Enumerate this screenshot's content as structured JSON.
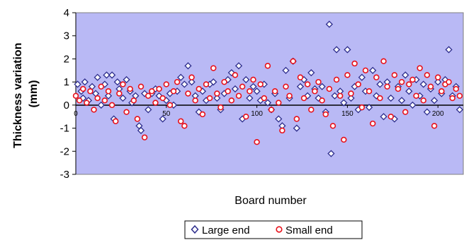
{
  "chart_data": {
    "type": "scatter",
    "xlabel": "Board number",
    "ylabel": "Thickness variation (mm)",
    "ylabel_lines": [
      "Thickness variation",
      "(mm)"
    ],
    "xlim": [
      0,
      214
    ],
    "ylim": [
      -3,
      4
    ],
    "y_ticks": [
      "4",
      "3",
      "2",
      "1",
      "0",
      "-1",
      "-2",
      "-3"
    ],
    "x_tick_labels": [
      "0",
      "50",
      "100",
      "150",
      "200"
    ],
    "x_tick_values": [
      0,
      50,
      100,
      150,
      200
    ],
    "grid": false,
    "legend_position": "bottom",
    "colors": {
      "plot_background": "#b9b9f5",
      "large_end": "#2c2c8c",
      "small_end": "#e8101a"
    },
    "series": [
      {
        "name": "Large end",
        "marker": "diamond",
        "values": [
          [
            1,
            0.9
          ],
          [
            3,
            0.6
          ],
          [
            4,
            0.3
          ],
          [
            5,
            1.0
          ],
          [
            7,
            0.2
          ],
          [
            9,
            0.8
          ],
          [
            11,
            0.5
          ],
          [
            12,
            1.2
          ],
          [
            14,
            0.0
          ],
          [
            16,
            0.9
          ],
          [
            17,
            1.3
          ],
          [
            18,
            0.4
          ],
          [
            20,
            1.3
          ],
          [
            21,
            -0.6
          ],
          [
            23,
            1.0
          ],
          [
            24,
            0.7
          ],
          [
            26,
            0.3
          ],
          [
            28,
            1.1
          ],
          [
            30,
            0.6
          ],
          [
            31,
            0.1
          ],
          [
            33,
            0.4
          ],
          [
            35,
            -0.9
          ],
          [
            36,
            -1.1
          ],
          [
            38,
            0.5
          ],
          [
            40,
            -0.2
          ],
          [
            42,
            0.5
          ],
          [
            44,
            0.7
          ],
          [
            46,
            0.4
          ],
          [
            48,
            -0.6
          ],
          [
            50,
            0.2
          ],
          [
            52,
            0.5
          ],
          [
            54,
            0.0
          ],
          [
            56,
            0.6
          ],
          [
            58,
            1.2
          ],
          [
            60,
            0.9
          ],
          [
            62,
            1.7
          ],
          [
            64,
            1.0
          ],
          [
            66,
            0.4
          ],
          [
            68,
            -0.3
          ],
          [
            70,
            0.6
          ],
          [
            72,
            0.2
          ],
          [
            74,
            0.9
          ],
          [
            76,
            1.0
          ],
          [
            78,
            0.3
          ],
          [
            80,
            -0.2
          ],
          [
            82,
            0.5
          ],
          [
            84,
            1.1
          ],
          [
            86,
            1.4
          ],
          [
            88,
            0.7
          ],
          [
            90,
            1.7
          ],
          [
            92,
            -0.6
          ],
          [
            94,
            1.1
          ],
          [
            96,
            0.3
          ],
          [
            98,
            0.8
          ],
          [
            100,
            0.6
          ],
          [
            102,
            0.2
          ],
          [
            104,
            0.9
          ],
          [
            106,
            0.1
          ],
          [
            108,
            -0.2
          ],
          [
            110,
            0.5
          ],
          [
            112,
            -0.6
          ],
          [
            114,
            -0.9
          ],
          [
            116,
            1.5
          ],
          [
            118,
            0.3
          ],
          [
            120,
            1.9
          ],
          [
            122,
            -1.0
          ],
          [
            124,
            0.8
          ],
          [
            126,
            1.1
          ],
          [
            128,
            0.4
          ],
          [
            130,
            1.4
          ],
          [
            132,
            0.7
          ],
          [
            134,
            0.3
          ],
          [
            136,
            0.8
          ],
          [
            138,
            -0.3
          ],
          [
            140,
            3.5
          ],
          [
            141,
            -2.1
          ],
          [
            143,
            0.4
          ],
          [
            144,
            2.4
          ],
          [
            146,
            0.6
          ],
          [
            148,
            0.1
          ],
          [
            150,
            2.4
          ],
          [
            152,
            0.3
          ],
          [
            154,
            0.8
          ],
          [
            156,
            -0.2
          ],
          [
            158,
            1.2
          ],
          [
            160,
            0.6
          ],
          [
            162,
            -0.1
          ],
          [
            164,
            1.5
          ],
          [
            166,
            0.4
          ],
          [
            168,
            0.9
          ],
          [
            170,
            -0.5
          ],
          [
            172,
            1.0
          ],
          [
            174,
            0.3
          ],
          [
            176,
            -0.6
          ],
          [
            178,
            0.8
          ],
          [
            180,
            0.2
          ],
          [
            182,
            1.3
          ],
          [
            184,
            0.6
          ],
          [
            186,
            0.0
          ],
          [
            188,
            1.1
          ],
          [
            190,
            0.4
          ],
          [
            192,
            0.9
          ],
          [
            194,
            -0.3
          ],
          [
            196,
            0.7
          ],
          [
            198,
            0.2
          ],
          [
            200,
            1.0
          ],
          [
            202,
            0.5
          ],
          [
            204,
            1.1
          ],
          [
            206,
            2.4
          ],
          [
            208,
            0.4
          ],
          [
            210,
            0.8
          ],
          [
            212,
            -0.2
          ]
        ]
      },
      {
        "name": "Small end",
        "marker": "circle",
        "values": [
          [
            0,
            0.4
          ],
          [
            2,
            0.2
          ],
          [
            4,
            0.7
          ],
          [
            6,
            0.1
          ],
          [
            8,
            0.6
          ],
          [
            10,
            -0.2
          ],
          [
            12,
            0.3
          ],
          [
            14,
            0.8
          ],
          [
            16,
            0.2
          ],
          [
            18,
            0.6
          ],
          [
            20,
            0.0
          ],
          [
            22,
            -0.7
          ],
          [
            24,
            0.5
          ],
          [
            26,
            0.9
          ],
          [
            28,
            -0.3
          ],
          [
            30,
            0.7
          ],
          [
            32,
            0.2
          ],
          [
            34,
            -0.6
          ],
          [
            36,
            0.8
          ],
          [
            38,
            -1.4
          ],
          [
            40,
            0.4
          ],
          [
            42,
            0.6
          ],
          [
            44,
            0.1
          ],
          [
            46,
            0.7
          ],
          [
            48,
            0.3
          ],
          [
            50,
            0.9
          ],
          [
            52,
            0.0
          ],
          [
            54,
            0.6
          ],
          [
            56,
            1.0
          ],
          [
            58,
            -0.7
          ],
          [
            60,
            -0.9
          ],
          [
            62,
            0.5
          ],
          [
            64,
            1.2
          ],
          [
            66,
            0.2
          ],
          [
            68,
            0.7
          ],
          [
            70,
            -0.4
          ],
          [
            72,
            0.9
          ],
          [
            74,
            0.3
          ],
          [
            76,
            1.6
          ],
          [
            78,
            0.5
          ],
          [
            80,
            -0.1
          ],
          [
            82,
            1.0
          ],
          [
            84,
            0.6
          ],
          [
            86,
            0.2
          ],
          [
            88,
            1.3
          ],
          [
            90,
            0.4
          ],
          [
            92,
            0.8
          ],
          [
            94,
            -0.5
          ],
          [
            96,
            0.6
          ],
          [
            98,
            1.1
          ],
          [
            100,
            -1.6
          ],
          [
            102,
            0.9
          ],
          [
            104,
            0.3
          ],
          [
            106,
            1.7
          ],
          [
            108,
            -0.2
          ],
          [
            110,
            0.6
          ],
          [
            112,
            0.1
          ],
          [
            114,
            -1.1
          ],
          [
            116,
            0.8
          ],
          [
            118,
            0.4
          ],
          [
            120,
            1.9
          ],
          [
            122,
            -0.6
          ],
          [
            124,
            1.2
          ],
          [
            126,
            0.3
          ],
          [
            128,
            0.9
          ],
          [
            130,
            -0.2
          ],
          [
            132,
            0.6
          ],
          [
            134,
            1.0
          ],
          [
            136,
            0.2
          ],
          [
            138,
            -0.4
          ],
          [
            140,
            0.7
          ],
          [
            142,
            -0.9
          ],
          [
            144,
            1.1
          ],
          [
            146,
            0.4
          ],
          [
            148,
            -1.5
          ],
          [
            150,
            1.3
          ],
          [
            152,
            0.5
          ],
          [
            154,
            1.8
          ],
          [
            156,
            0.9
          ],
          [
            158,
            -0.1
          ],
          [
            160,
            1.5
          ],
          [
            162,
            0.6
          ],
          [
            164,
            -0.8
          ],
          [
            166,
            1.2
          ],
          [
            168,
            0.3
          ],
          [
            170,
            1.9
          ],
          [
            172,
            0.8
          ],
          [
            174,
            -0.5
          ],
          [
            176,
            1.3
          ],
          [
            178,
            0.7
          ],
          [
            180,
            1.0
          ],
          [
            182,
            -0.3
          ],
          [
            184,
            0.9
          ],
          [
            186,
            1.1
          ],
          [
            188,
            0.4
          ],
          [
            190,
            1.6
          ],
          [
            192,
            0.2
          ],
          [
            194,
            1.3
          ],
          [
            196,
            0.8
          ],
          [
            198,
            -0.9
          ],
          [
            200,
            1.2
          ],
          [
            202,
            0.6
          ],
          [
            204,
            0.9
          ],
          [
            206,
            1.0
          ],
          [
            208,
            0.3
          ],
          [
            210,
            0.7
          ],
          [
            212,
            0.4
          ]
        ]
      }
    ]
  }
}
